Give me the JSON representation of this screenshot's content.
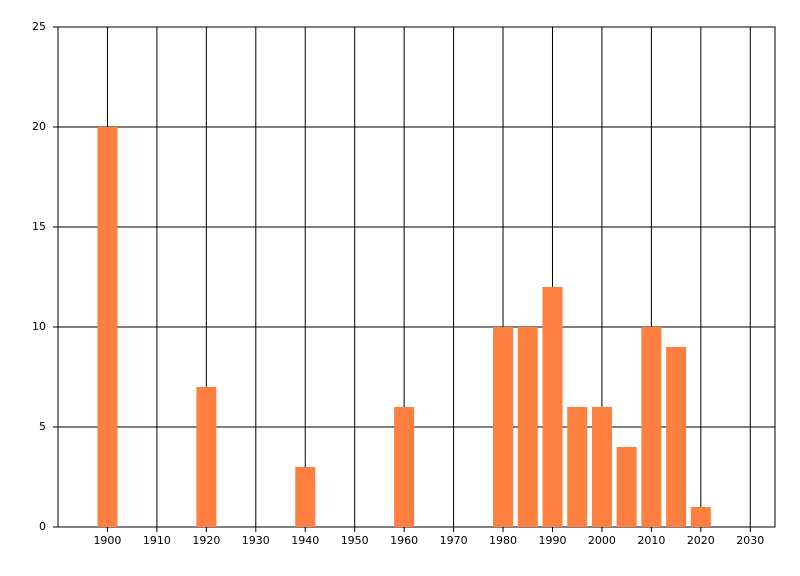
{
  "chart_data": {
    "type": "bar",
    "x": [
      1900,
      1920,
      1940,
      1960,
      1980,
      1985,
      1990,
      1995,
      2000,
      2005,
      2010,
      2015,
      2020
    ],
    "values": [
      20,
      7,
      3,
      6,
      10,
      10,
      12,
      6,
      6,
      4,
      10,
      9,
      1
    ],
    "color": "#ff7f40",
    "xlim": [
      1890,
      2035
    ],
    "xticks": [
      1900,
      1910,
      1920,
      1930,
      1940,
      1950,
      1960,
      1970,
      1980,
      1990,
      2000,
      2010,
      2020,
      2030
    ],
    "ylim": [
      0,
      25
    ],
    "yticks": [
      0,
      5,
      10,
      15,
      20,
      25
    ],
    "grid": true
  }
}
